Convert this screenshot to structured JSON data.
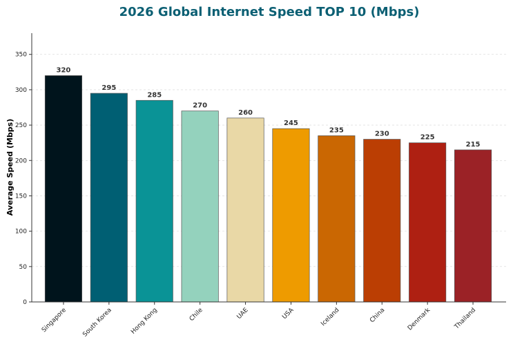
{
  "chart_data": {
    "type": "bar",
    "title": "2026 Global Internet Speed TOP 10 (Mbps)",
    "xlabel": "",
    "ylabel": "Average Speed (Mbps)",
    "categories": [
      "Singapore",
      "South Korea",
      "Hong Kong",
      "Chile",
      "UAE",
      "USA",
      "Iceland",
      "China",
      "Denmark",
      "Thailand"
    ],
    "values": [
      320,
      295,
      285,
      270,
      260,
      245,
      235,
      230,
      225,
      215
    ],
    "colors": [
      "#00141c",
      "#005f73",
      "#0a9396",
      "#94d2bd",
      "#e9d8a6",
      "#ee9b00",
      "#ca6702",
      "#bb3e03",
      "#ae2012",
      "#9b2226"
    ],
    "ylim": [
      0,
      380
    ],
    "yticks": [
      0,
      50,
      100,
      150,
      200,
      250,
      300,
      350
    ],
    "grid": true,
    "legend": "none"
  }
}
